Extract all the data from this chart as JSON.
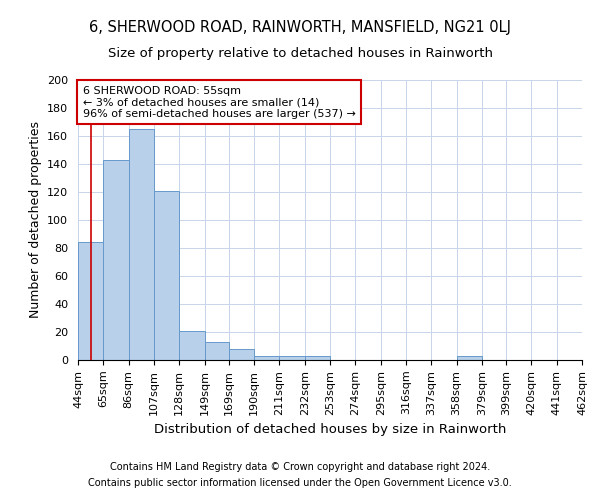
{
  "title": "6, SHERWOOD ROAD, RAINWORTH, MANSFIELD, NG21 0LJ",
  "subtitle": "Size of property relative to detached houses in Rainworth",
  "xlabel": "Distribution of detached houses by size in Rainworth",
  "ylabel": "Number of detached properties",
  "footnote1": "Contains HM Land Registry data © Crown copyright and database right 2024.",
  "footnote2": "Contains public sector information licensed under the Open Government Licence v3.0.",
  "bin_edges": [
    44,
    65,
    86,
    107,
    128,
    149,
    169,
    190,
    211,
    232,
    253,
    274,
    295,
    316,
    337,
    358,
    379,
    399,
    420,
    441,
    462
  ],
  "bar_heights": [
    84,
    143,
    165,
    121,
    21,
    13,
    8,
    3,
    3,
    3,
    0,
    0,
    0,
    0,
    0,
    3,
    0,
    0,
    0,
    0
  ],
  "bar_color": "#b8d0ea",
  "bar_edge_color": "#6699cc",
  "grid_color": "#c8d4e8",
  "property_size": 55,
  "red_line_color": "#cc0000",
  "annotation_line1": "6 SHERWOOD ROAD: 55sqm",
  "annotation_line2": "← 3% of detached houses are smaller (14)",
  "annotation_line3": "96% of semi-detached houses are larger (537) →",
  "annotation_box_color": "#ffffff",
  "annotation_box_edge": "#cc0000",
  "ylim": [
    0,
    200
  ],
  "yticks": [
    0,
    20,
    40,
    60,
    80,
    100,
    120,
    140,
    160,
    180,
    200
  ],
  "title_fontsize": 10.5,
  "subtitle_fontsize": 9.5,
  "axis_label_fontsize": 9,
  "tick_fontsize": 8,
  "annotation_fontsize": 8,
  "footnote_fontsize": 7
}
